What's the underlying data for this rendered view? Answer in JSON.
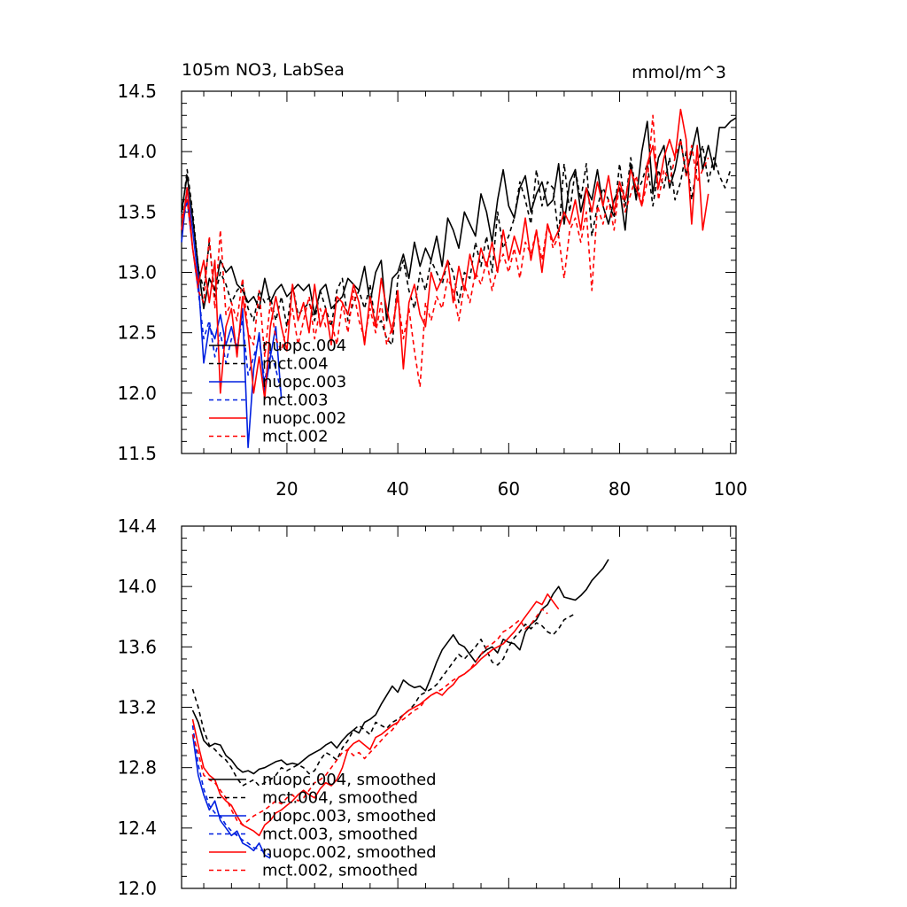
{
  "chart_data": [
    {
      "type": "line",
      "title": "105m NO3, LabSea",
      "units": "mmol/m^3",
      "xlim": [
        1,
        101
      ],
      "ylim": [
        11.5,
        14.5
      ],
      "xticks": [
        20,
        40,
        60,
        80,
        100
      ],
      "yticks": [
        11.5,
        12.0,
        12.5,
        13.0,
        13.5,
        14.0,
        14.5
      ],
      "ytick_labels": [
        "11.5",
        "12.0",
        "12.5",
        "13.0",
        "13.5",
        "14.0",
        "14.5"
      ],
      "xtick_labels": [
        "20",
        "40",
        "60",
        "80",
        "100"
      ],
      "legend": [
        "nuopc.004",
        "mct.004",
        "nuopc.003",
        "mct.003",
        "nuopc.002",
        "mct.002"
      ],
      "series": [
        {
          "name": "nuopc.004",
          "color": "#000000",
          "dash": false,
          "x_start": 1,
          "values": [
            13.5,
            13.8,
            13.45,
            13.05,
            12.7,
            12.95,
            12.85,
            13.1,
            13.0,
            13.05,
            12.9,
            12.85,
            12.75,
            12.8,
            12.7,
            12.95,
            12.75,
            12.85,
            12.9,
            12.8,
            12.85,
            12.9,
            12.85,
            12.9,
            12.65,
            12.85,
            12.9,
            12.7,
            12.75,
            12.8,
            12.95,
            12.9,
            12.85,
            13.05,
            12.75,
            13.0,
            13.1,
            12.6,
            12.95,
            13.0,
            13.15,
            12.95,
            13.25,
            13.05,
            13.2,
            13.1,
            13.3,
            13.05,
            13.45,
            13.35,
            13.2,
            13.5,
            13.4,
            13.3,
            13.65,
            13.5,
            13.25,
            13.6,
            13.85,
            13.55,
            13.45,
            13.7,
            13.8,
            13.5,
            13.65,
            13.75,
            13.55,
            13.6,
            13.9,
            13.4,
            13.75,
            13.85,
            13.5,
            13.7,
            13.6,
            13.85,
            13.55,
            13.4,
            13.6,
            13.7,
            13.35,
            13.9,
            13.6,
            14.0,
            14.25,
            13.65,
            13.95,
            14.05,
            13.7,
            13.85,
            14.1,
            13.8,
            14.0,
            14.2,
            13.85,
            14.05,
            13.85,
            14.2,
            14.2,
            14.25,
            14.28
          ]
        },
        {
          "name": "mct.004",
          "color": "#000000",
          "dash": true,
          "x_start": 1,
          "values": [
            13.45,
            13.85,
            13.5,
            13.05,
            12.85,
            13.25,
            12.8,
            13.0,
            12.9,
            12.75,
            12.85,
            12.9,
            12.7,
            12.6,
            12.85,
            12.75,
            12.8,
            12.6,
            12.8,
            12.55,
            12.9,
            12.65,
            12.7,
            12.75,
            12.6,
            12.85,
            12.7,
            12.55,
            12.85,
            12.95,
            12.6,
            12.75,
            12.85,
            12.7,
            12.9,
            12.55,
            12.6,
            12.45,
            12.4,
            12.95,
            13.1,
            12.85,
            12.7,
            13.0,
            12.85,
            13.1,
            13.0,
            12.9,
            13.1,
            13.0,
            12.75,
            13.0,
            12.95,
            13.25,
            13.05,
            13.3,
            13.0,
            13.5,
            13.2,
            13.3,
            13.45,
            13.75,
            13.6,
            13.4,
            13.85,
            13.55,
            13.75,
            13.7,
            13.3,
            13.9,
            13.5,
            13.85,
            13.6,
            13.9,
            13.3,
            13.55,
            13.7,
            13.6,
            13.45,
            13.9,
            13.55,
            13.95,
            13.65,
            13.75,
            13.9,
            13.55,
            13.85,
            13.7,
            13.95,
            13.6,
            13.75,
            14.0,
            13.6,
            13.9,
            14.05,
            13.75,
            13.95,
            13.8,
            13.7,
            13.85
          ]
        },
        {
          "name": "nuopc.003",
          "color": "#0020e0",
          "dash": false,
          "x_start": 1,
          "values": [
            13.25,
            13.7,
            13.35,
            12.95,
            12.25,
            12.55,
            12.45,
            12.65,
            12.4,
            12.55,
            12.35,
            12.7,
            11.55,
            12.2,
            12.5,
            12.0,
            12.3,
            12.55,
            11.95
          ]
        },
        {
          "name": "mct.003",
          "color": "#0020e0",
          "dash": true,
          "x_start": 1,
          "values": [
            13.35,
            13.6,
            13.2,
            12.85,
            12.45,
            12.6,
            12.3,
            12.5,
            12.25,
            12.45,
            12.4,
            12.6,
            12.15,
            12.3,
            12.45,
            12.1,
            12.35,
            12.2,
            12.0
          ]
        },
        {
          "name": "nuopc.002",
          "color": "#ff0000",
          "dash": false,
          "x_start": 1,
          "values": [
            13.35,
            13.7,
            13.2,
            12.9,
            13.1,
            12.75,
            13.1,
            12.0,
            12.55,
            12.7,
            12.3,
            12.8,
            12.5,
            12.0,
            12.3,
            11.95,
            12.55,
            12.8,
            12.55,
            12.35,
            12.9,
            12.6,
            12.75,
            12.5,
            12.9,
            12.55,
            12.7,
            12.4,
            12.8,
            12.75,
            12.65,
            12.9,
            12.75,
            12.4,
            12.8,
            12.55,
            12.95,
            12.7,
            12.5,
            12.85,
            12.2,
            12.75,
            12.9,
            12.65,
            12.55,
            13.0,
            12.85,
            12.95,
            13.1,
            12.75,
            13.05,
            12.85,
            13.15,
            12.95,
            13.2,
            13.05,
            13.25,
            13.0,
            13.35,
            13.1,
            13.3,
            13.15,
            13.45,
            13.1,
            13.35,
            13.0,
            13.4,
            13.25,
            13.35,
            13.5,
            13.4,
            13.6,
            13.35,
            13.7,
            13.5,
            13.75,
            13.55,
            13.8,
            13.5,
            13.75,
            13.6,
            13.85,
            13.7,
            13.55,
            13.9,
            14.05,
            13.7,
            13.95,
            14.1,
            13.95,
            14.35,
            14.1,
            13.4,
            14.05,
            13.35,
            13.65
          ]
        },
        {
          "name": "mct.002",
          "color": "#ff0000",
          "dash": true,
          "x_start": 1,
          "values": [
            13.45,
            13.6,
            13.2,
            12.85,
            12.75,
            13.3,
            12.7,
            13.35,
            12.65,
            12.75,
            12.6,
            12.95,
            12.5,
            12.4,
            12.85,
            12.3,
            12.75,
            12.45,
            12.35,
            12.55,
            12.7,
            12.4,
            12.6,
            12.8,
            12.45,
            12.7,
            12.55,
            12.6,
            12.4,
            12.75,
            12.5,
            12.85,
            12.6,
            12.45,
            12.7,
            12.5,
            12.75,
            12.4,
            12.55,
            12.8,
            12.45,
            12.7,
            12.35,
            12.05,
            12.75,
            12.6,
            12.8,
            12.7,
            12.95,
            12.85,
            12.6,
            12.9,
            12.75,
            13.0,
            12.9,
            13.1,
            12.85,
            13.05,
            13.15,
            13.0,
            13.2,
            12.95,
            13.25,
            13.15,
            13.35,
            13.1,
            13.4,
            13.2,
            13.3,
            12.95,
            13.35,
            13.45,
            13.25,
            13.5,
            12.85,
            13.55,
            13.4,
            13.6,
            13.35,
            13.75,
            13.5,
            13.65,
            13.8,
            13.55,
            13.75,
            14.3,
            13.6,
            13.85,
            13.75,
            13.95,
            14.1,
            13.8,
            14.05,
            13.75,
            13.85,
            13.95
          ]
        }
      ]
    },
    {
      "type": "line",
      "title": "",
      "xlim": [
        1,
        101
      ],
      "ylim": [
        12.0,
        14.4
      ],
      "xticks": [
        20,
        40,
        60,
        80,
        100
      ],
      "yticks": [
        12.0,
        12.4,
        12.8,
        13.2,
        13.6,
        14.0,
        14.4
      ],
      "ytick_labels": [
        "12.0",
        "12.4",
        "12.8",
        "13.2",
        "13.6",
        "14.0",
        "14.4"
      ],
      "legend": [
        "nuopc.004, smoothed",
        "mct.004, smoothed",
        "nuopc.003, smoothed",
        "mct.003, smoothed",
        "nuopc.002, smoothed",
        "mct.002, smoothed"
      ],
      "series": [
        {
          "name": "nuopc.004, smoothed",
          "color": "#000000",
          "dash": false,
          "x_start": 3,
          "values": [
            13.18,
            13.1,
            12.98,
            12.94,
            12.96,
            12.95,
            12.88,
            12.85,
            12.8,
            12.77,
            12.78,
            12.76,
            12.79,
            12.8,
            12.82,
            12.84,
            12.85,
            12.82,
            12.83,
            12.82,
            12.85,
            12.88,
            12.9,
            12.92,
            12.95,
            12.97,
            12.93,
            12.98,
            13.02,
            13.05,
            13.03,
            13.1,
            13.12,
            13.15,
            13.22,
            13.28,
            13.34,
            13.3,
            13.38,
            13.35,
            13.33,
            13.34,
            13.31,
            13.4,
            13.5,
            13.58,
            13.63,
            13.68,
            13.62,
            13.6,
            13.55,
            13.5,
            13.55,
            13.58,
            13.6,
            13.56,
            13.65,
            13.63,
            13.62,
            13.58,
            13.7,
            13.75,
            13.78,
            13.85,
            13.88,
            13.95,
            14.0,
            13.93,
            13.92,
            13.91,
            13.94,
            13.98,
            14.04,
            14.08,
            14.12,
            14.18
          ]
        },
        {
          "name": "mct.004, smoothed",
          "color": "#000000",
          "dash": true,
          "x_start": 3,
          "values": [
            13.32,
            13.2,
            13.05,
            12.95,
            12.92,
            12.88,
            12.85,
            12.8,
            12.73,
            12.68,
            12.7,
            12.72,
            12.68,
            12.7,
            12.72,
            12.75,
            12.8,
            12.78,
            12.8,
            12.82,
            12.8,
            12.76,
            12.78,
            12.85,
            12.9,
            12.88,
            12.85,
            12.93,
            12.98,
            13.05,
            13.08,
            13.05,
            13.02,
            13.1,
            13.08,
            13.06,
            13.1,
            13.12,
            13.15,
            13.18,
            13.22,
            13.28,
            13.3,
            13.32,
            13.35,
            13.4,
            13.45,
            13.5,
            13.55,
            13.52,
            13.56,
            13.6,
            13.65,
            13.58,
            13.5,
            13.48,
            13.52,
            13.6,
            13.66,
            13.7,
            13.75,
            13.72,
            13.76,
            13.74,
            13.7,
            13.68,
            13.72,
            13.78,
            13.8,
            13.82
          ]
        },
        {
          "name": "nuopc.003, smoothed",
          "color": "#0020e0",
          "dash": false,
          "x_start": 3,
          "values": [
            13.02,
            12.75,
            12.62,
            12.52,
            12.58,
            12.45,
            12.4,
            12.35,
            12.38,
            12.3,
            12.28,
            12.25,
            12.3,
            12.22,
            12.2
          ]
        },
        {
          "name": "mct.003, smoothed",
          "color": "#0020e0",
          "dash": true,
          "x_start": 3,
          "values": [
            13.08,
            12.82,
            12.66,
            12.55,
            12.5,
            12.48,
            12.42,
            12.38,
            12.35,
            12.32,
            12.3,
            12.27,
            12.26,
            12.24,
            12.22
          ]
        },
        {
          "name": "nuopc.002, smoothed",
          "color": "#ff0000",
          "dash": false,
          "x_start": 3,
          "values": [
            13.12,
            12.95,
            12.8,
            12.75,
            12.72,
            12.62,
            12.58,
            12.55,
            12.48,
            12.42,
            12.4,
            12.38,
            12.35,
            12.42,
            12.45,
            12.5,
            12.52,
            12.55,
            12.58,
            12.62,
            12.65,
            12.62,
            12.6,
            12.66,
            12.7,
            12.68,
            12.72,
            12.8,
            12.92,
            12.96,
            12.98,
            12.95,
            12.92,
            13.0,
            13.02,
            13.05,
            13.08,
            13.1,
            13.15,
            13.18,
            13.2,
            13.22,
            13.25,
            13.28,
            13.3,
            13.28,
            13.32,
            13.35,
            13.4,
            13.42,
            13.45,
            13.48,
            13.52,
            13.55,
            13.58,
            13.6,
            13.62,
            13.66,
            13.7,
            13.75,
            13.8,
            13.85,
            13.9,
            13.88,
            13.95,
            13.9,
            13.85
          ]
        },
        {
          "name": "mct.002, smoothed",
          "color": "#ff0000",
          "dash": true,
          "x_start": 3,
          "values": [
            13.02,
            12.9,
            12.75,
            12.72,
            12.7,
            12.65,
            12.6,
            12.52,
            12.45,
            12.42,
            12.45,
            12.48,
            12.5,
            12.52,
            12.55,
            12.58,
            12.56,
            12.6,
            12.62,
            12.58,
            12.6,
            12.65,
            12.7,
            12.72,
            12.75,
            12.8,
            12.85,
            12.9,
            12.92,
            12.88,
            12.9,
            12.86,
            12.9,
            12.94,
            12.98,
            13.02,
            13.05,
            13.1,
            13.12,
            13.15,
            13.18,
            13.2,
            13.25,
            13.28,
            13.3,
            13.32,
            13.35,
            13.38,
            13.4,
            13.42,
            13.45,
            13.5,
            13.55,
            13.6,
            13.62,
            13.65,
            13.7,
            13.72,
            13.75,
            13.78,
            13.72,
            13.75,
            13.8,
            13.85,
            13.82
          ]
        }
      ]
    }
  ]
}
